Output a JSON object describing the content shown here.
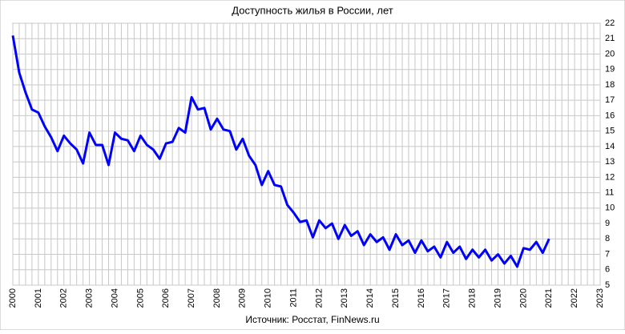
{
  "chart_data": {
    "type": "line",
    "title": "Доступность жилья в России, лет",
    "source": "Источник: Росстат, FinNews.ru",
    "x": [
      2000,
      2000.25,
      2000.5,
      2000.75,
      2001,
      2001.25,
      2001.5,
      2001.75,
      2002,
      2002.25,
      2002.5,
      2002.75,
      2003,
      2003.25,
      2003.5,
      2003.75,
      2004,
      2004.25,
      2004.5,
      2004.75,
      2005,
      2005.25,
      2005.5,
      2005.75,
      2006,
      2006.25,
      2006.5,
      2006.75,
      2007,
      2007.25,
      2007.5,
      2007.75,
      2008,
      2008.25,
      2008.5,
      2008.75,
      2009,
      2009.25,
      2009.5,
      2009.75,
      2010,
      2010.25,
      2010.5,
      2010.75,
      2011,
      2011.25,
      2011.5,
      2011.75,
      2012,
      2012.25,
      2012.5,
      2012.75,
      2013,
      2013.25,
      2013.5,
      2013.75,
      2014,
      2014.25,
      2014.5,
      2014.75,
      2015,
      2015.25,
      2015.5,
      2015.75,
      2016,
      2016.25,
      2016.5,
      2016.75,
      2017,
      2017.25,
      2017.5,
      2017.75,
      2018,
      2018.25,
      2018.5,
      2018.75,
      2019,
      2019.25,
      2019.5,
      2019.75,
      2020,
      2020.25,
      2020.5,
      2020.75,
      2021
    ],
    "series": [
      {
        "color": "#0000ff",
        "values": [
          21.2,
          18.8,
          17.5,
          16.4,
          16.2,
          15.3,
          14.6,
          13.7,
          14.7,
          14.2,
          13.8,
          12.9,
          14.9,
          14.1,
          14.1,
          12.8,
          14.9,
          14.5,
          14.4,
          13.7,
          14.7,
          14.1,
          13.8,
          13.2,
          14.2,
          14.3,
          15.2,
          14.9,
          17.2,
          16.4,
          16.5,
          15.1,
          15.8,
          15.1,
          15.0,
          13.8,
          14.5,
          13.4,
          12.8,
          11.5,
          12.4,
          11.5,
          11.4,
          10.2,
          9.7,
          9.1,
          9.2,
          8.1,
          9.2,
          8.7,
          9.0,
          8.0,
          8.9,
          8.2,
          8.5,
          7.6,
          8.3,
          7.8,
          8.1,
          7.3,
          8.3,
          7.6,
          7.9,
          7.1,
          7.9,
          7.2,
          7.5,
          6.8,
          7.8,
          7.1,
          7.5,
          6.7,
          7.3,
          6.8,
          7.3,
          6.6,
          7.0,
          6.4,
          6.9,
          6.2,
          7.4,
          7.3,
          7.8,
          7.1,
          8.0
        ]
      }
    ],
    "xlim": [
      2000,
      2023
    ],
    "xticks": [
      2000,
      2001,
      2002,
      2003,
      2004,
      2005,
      2006,
      2007,
      2008,
      2009,
      2010,
      2011,
      2012,
      2013,
      2014,
      2015,
      2016,
      2017,
      2018,
      2019,
      2020,
      2021,
      2022,
      2023
    ],
    "ylim": [
      5,
      22
    ],
    "yticks": [
      5,
      6,
      7,
      8,
      9,
      10,
      11,
      12,
      13,
      14,
      15,
      16,
      17,
      18,
      19,
      20,
      21,
      22
    ],
    "grid": true
  }
}
